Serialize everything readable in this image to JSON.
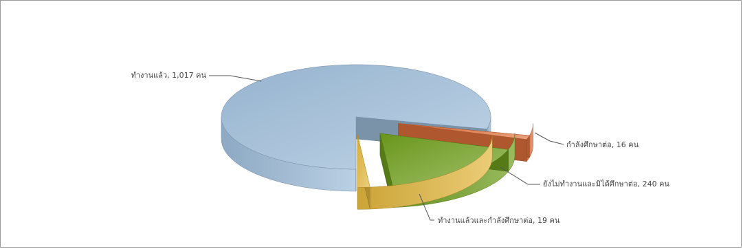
{
  "chart_data": {
    "type": "pie",
    "variant": "3d-exploded",
    "title": "",
    "unit": "คน",
    "slices": [
      {
        "label": "ทำงานแล้ว",
        "value": 1017,
        "value_text": "1,017",
        "color": "#9dbcd9",
        "exploded": false
      },
      {
        "label": "กำลังศึกษาต่อ",
        "value": 16,
        "value_text": "16",
        "color": "#e0703c",
        "exploded": true
      },
      {
        "label": "ยังไม่ทำงานและมิได้ศึกษาต่อ",
        "value": 240,
        "value_text": "240",
        "color": "#6e9e1c",
        "exploded": true
      },
      {
        "label": "ทำงานแล้วและกำลังศึกษาต่อ",
        "value": 19,
        "value_text": "19",
        "color": "#e2b63c",
        "exploded": true
      }
    ]
  }
}
